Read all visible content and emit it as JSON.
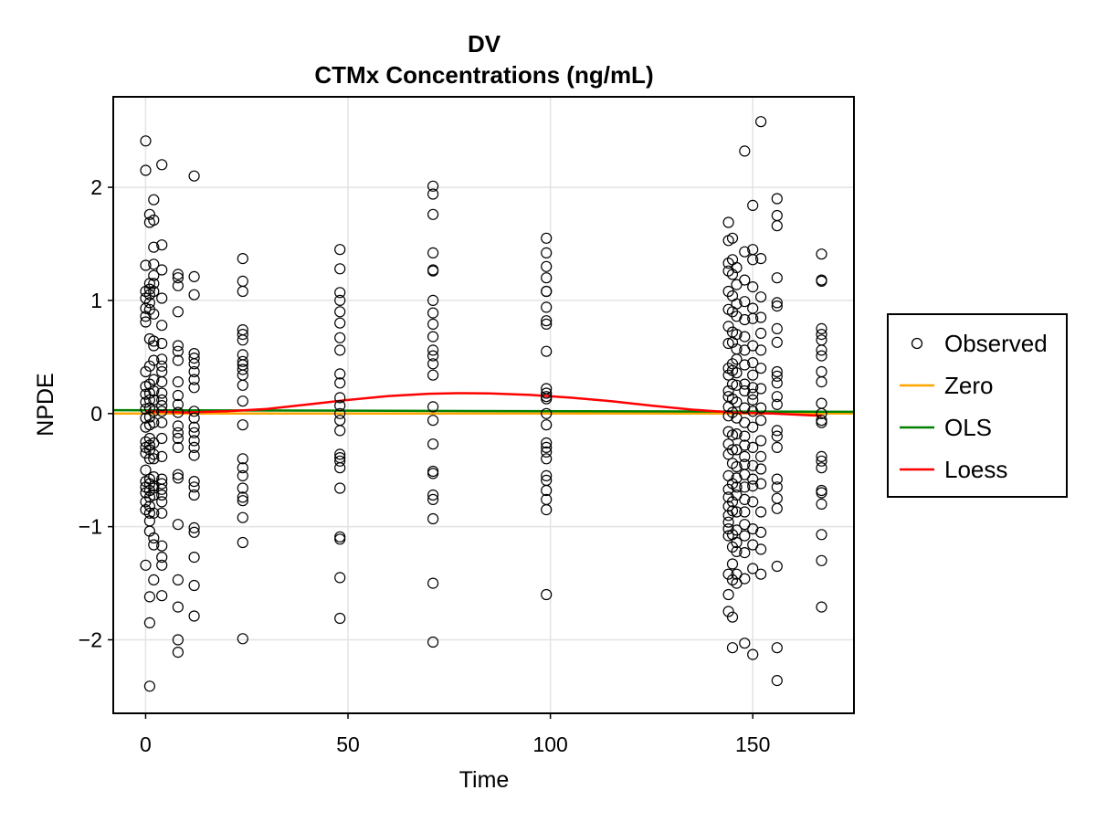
{
  "chart_data": {
    "type": "scatter",
    "title": "DV",
    "subtitle": "CTMx Concentrations (ng/mL)",
    "xlabel": "Time",
    "ylabel": "NPDE",
    "xlim": [
      -8,
      175
    ],
    "ylim": [
      -2.65,
      2.8
    ],
    "xticks": [
      0,
      50,
      100,
      150
    ],
    "yticks": [
      -2,
      -1,
      0,
      1,
      2
    ],
    "xtick_labels": [
      "0",
      "50",
      "100",
      "150"
    ],
    "ytick_labels": [
      "−2",
      "−1",
      "0",
      "1",
      "2"
    ],
    "grid": true,
    "legend_position": "right",
    "legend": [
      {
        "name": "Observed",
        "kind": "marker",
        "color": "#000000"
      },
      {
        "name": "Zero",
        "kind": "line",
        "color": "#FFA500"
      },
      {
        "name": "OLS",
        "kind": "line",
        "color": "#008000"
      },
      {
        "name": "Loess",
        "kind": "line",
        "color": "#FF0000"
      }
    ],
    "observed": [
      {
        "x": 0,
        "ys": [
          2.41,
          2.15,
          1.31,
          1.08,
          1.02,
          0.93,
          0.86,
          0.81,
          0.37,
          0.24,
          0.17,
          0.1,
          0.04,
          -0.04,
          -0.12,
          -0.25,
          -0.3,
          -0.35,
          -0.5,
          -0.6,
          -0.65,
          -0.7,
          -0.78,
          -0.85,
          -1.34
        ]
      },
      {
        "x": 1,
        "ys": [
          1.76,
          1.69,
          1.15,
          1.1,
          1.05,
          0.98,
          0.92,
          0.66,
          0.42,
          0.26,
          0.18,
          0.12,
          0.05,
          -0.03,
          -0.1,
          -0.22,
          -0.28,
          -0.32,
          -0.4,
          -0.58,
          -0.62,
          -0.68,
          -0.74,
          -0.82,
          -0.88,
          -0.95,
          -1.04,
          -1.62,
          -1.85,
          -2.41
        ]
      },
      {
        "x": 2,
        "ys": [
          1.89,
          1.71,
          1.47,
          1.32,
          1.22,
          1.15,
          1.08,
          0.88,
          0.64,
          0.6,
          0.47,
          0.3,
          0.2,
          0.12,
          0.02,
          -0.08,
          -0.26,
          -0.36,
          -0.4,
          -0.56,
          -0.64,
          -0.66,
          -0.72,
          -0.88,
          -1.1,
          -1.16,
          -1.47
        ]
      },
      {
        "x": 4,
        "ys": [
          2.2,
          1.49,
          1.27,
          1.02,
          0.78,
          0.62,
          0.48,
          0.42,
          0.37,
          0.28,
          0.18,
          0.12,
          0.07,
          0.02,
          -0.08,
          -0.22,
          -0.38,
          -0.58,
          -0.62,
          -0.67,
          -0.72,
          -0.78,
          -0.88,
          -1.17,
          -1.27,
          -1.34,
          -1.61
        ]
      },
      {
        "x": 8,
        "ys": [
          1.23,
          1.2,
          1.13,
          0.9,
          0.6,
          0.55,
          0.47,
          0.28,
          0.16,
          0.08,
          0.01,
          -0.11,
          -0.17,
          -0.22,
          -0.3,
          -0.54,
          -0.57,
          -0.98,
          -1.47,
          -1.71,
          -2.0,
          -2.11
        ]
      },
      {
        "x": 12,
        "ys": [
          2.1,
          1.21,
          1.05,
          0.53,
          0.49,
          0.44,
          0.37,
          0.3,
          0.23,
          0.02,
          -0.04,
          -0.12,
          -0.17,
          -0.24,
          -0.3,
          -0.37,
          -0.6,
          -0.65,
          -0.72,
          -1.01,
          -1.05,
          -1.27,
          -1.52,
          -1.79
        ]
      },
      {
        "x": 24,
        "ys": [
          1.37,
          1.17,
          1.08,
          0.74,
          0.7,
          0.65,
          0.52,
          0.46,
          0.43,
          0.39,
          0.34,
          0.25,
          0.11,
          -0.1,
          -0.4,
          -0.48,
          -0.55,
          -0.66,
          -0.74,
          -0.77,
          -0.92,
          -1.14,
          -1.99
        ]
      },
      {
        "x": 48,
        "ys": [
          1.45,
          1.28,
          1.07,
          1.0,
          0.9,
          0.8,
          0.67,
          0.56,
          0.35,
          0.27,
          0.14,
          0.07,
          0.0,
          -0.06,
          -0.15,
          -0.36,
          -0.39,
          -0.42,
          -0.48,
          -0.66,
          -1.09,
          -1.11,
          -1.45,
          -1.81
        ]
      },
      {
        "x": 71,
        "ys": [
          2.01,
          1.94,
          1.76,
          1.42,
          1.27,
          1.26,
          1.0,
          0.89,
          0.79,
          0.68,
          0.56,
          0.51,
          0.44,
          0.34,
          0.06,
          -0.06,
          -0.27,
          -0.51,
          -0.53,
          -0.72,
          -0.76,
          -0.93,
          -1.5,
          -2.02
        ]
      },
      {
        "x": 99,
        "ys": [
          1.55,
          1.42,
          1.3,
          1.2,
          1.08,
          1.08,
          0.94,
          0.82,
          0.79,
          0.55,
          0.22,
          0.18,
          0.15,
          0.13,
          0.0,
          -0.1,
          -0.26,
          -0.3,
          -0.34,
          -0.4,
          -0.55,
          -0.59,
          -0.68,
          -0.76,
          -0.85,
          -1.6
        ]
      },
      {
        "x": 144,
        "ys": [
          1.69,
          1.53,
          1.33,
          1.26,
          1.08,
          0.92,
          0.77,
          0.62,
          0.4,
          0.34,
          0.2,
          0.15,
          0.06,
          -0.02,
          -0.16,
          -0.27,
          -0.36,
          -0.55,
          -0.67,
          -0.74,
          -0.82,
          -0.9,
          -0.96,
          -1.02,
          -1.08,
          -1.42,
          -1.6,
          -1.75
        ]
      },
      {
        "x": 145,
        "ys": [
          1.55,
          1.36,
          1.23,
          1.04,
          0.9,
          0.72,
          0.63,
          0.44,
          0.38,
          0.26,
          0.13,
          0.01,
          -0.19,
          -0.32,
          -0.44,
          -0.62,
          -0.78,
          -0.86,
          -1.07,
          -1.18,
          -1.33,
          -1.47,
          -1.8,
          -2.07
        ]
      },
      {
        "x": 146,
        "ys": [
          1.29,
          1.14,
          0.97,
          0.86,
          0.7,
          0.57,
          0.48,
          0.36,
          0.25,
          0.1,
          -0.04,
          -0.18,
          -0.32,
          -0.47,
          -0.57,
          -0.65,
          -0.72,
          -0.87,
          -1.03,
          -1.14,
          -1.22,
          -1.42,
          -1.5
        ]
      },
      {
        "x": 148,
        "ys": [
          2.32,
          1.43,
          1.18,
          0.99,
          0.83,
          0.68,
          0.56,
          0.43,
          0.26,
          0.2,
          0.05,
          -0.08,
          -0.2,
          -0.28,
          -0.38,
          -0.45,
          -0.54,
          -0.65,
          -0.76,
          -0.87,
          -0.98,
          -1.08,
          -1.23,
          -1.46,
          -2.03
        ]
      },
      {
        "x": 150,
        "ys": [
          1.84,
          1.45,
          1.36,
          1.12,
          0.93,
          0.84,
          0.6,
          0.45,
          0.34,
          0.23,
          0.17,
          0.12,
          0.02,
          -0.12,
          -0.3,
          -0.46,
          -0.58,
          -0.64,
          -0.78,
          -1.02,
          -1.16,
          -1.37,
          -2.13
        ]
      },
      {
        "x": 152,
        "ys": [
          2.58,
          1.37,
          1.03,
          0.85,
          0.71,
          0.56,
          0.4,
          0.22,
          0.05,
          -0.06,
          -0.24,
          -0.38,
          -0.49,
          -0.62,
          -0.87,
          -1.05,
          -1.2,
          -1.42
        ]
      },
      {
        "x": 156,
        "ys": [
          1.9,
          1.75,
          1.66,
          1.2,
          0.98,
          0.95,
          0.75,
          0.63,
          0.37,
          0.33,
          0.27,
          0.15,
          0.08,
          -0.15,
          -0.2,
          -0.3,
          -0.58,
          -0.65,
          -0.75,
          -0.84,
          -1.35,
          -2.07,
          -2.36
        ]
      },
      {
        "x": 167,
        "ys": [
          1.41,
          1.18,
          1.17,
          0.75,
          0.7,
          0.65,
          0.56,
          0.51,
          0.37,
          0.28,
          0.09,
          0.0,
          -0.06,
          -0.08,
          -0.38,
          -0.42,
          -0.48,
          -0.68,
          -0.7,
          -0.8,
          -1.07,
          -1.3,
          -1.71
        ]
      }
    ],
    "zero_line": {
      "x": [
        -8,
        175
      ],
      "y": [
        0,
        0
      ]
    },
    "ols_line": {
      "x": [
        -8,
        175
      ],
      "y": [
        0.03,
        0.015
      ]
    },
    "loess_line": {
      "x": [
        0,
        10,
        20,
        30,
        40,
        50,
        60,
        70,
        77,
        85,
        95,
        105,
        115,
        125,
        135,
        145,
        155,
        167
      ],
      "y": [
        0.02,
        0.01,
        0.02,
        0.04,
        0.08,
        0.12,
        0.155,
        0.175,
        0.18,
        0.178,
        0.165,
        0.14,
        0.11,
        0.07,
        0.035,
        0.01,
        0.0,
        -0.02
      ]
    }
  }
}
